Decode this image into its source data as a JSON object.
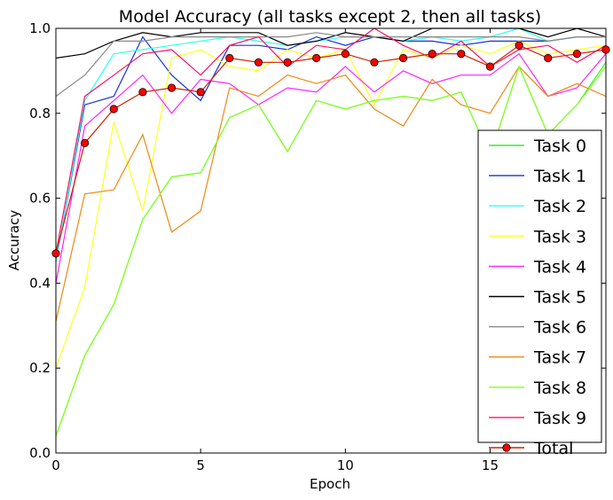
{
  "chart_data": {
    "type": "line",
    "title": "Model Accuracy (all tasks except 2, then all tasks)",
    "xlabel": "Epoch",
    "ylabel": "Accuracy",
    "xlim": [
      0,
      19
    ],
    "ylim": [
      0,
      1.0
    ],
    "xticks": [
      0,
      5,
      10,
      15
    ],
    "yticks": [
      0.0,
      0.2,
      0.4,
      0.6,
      0.8,
      1.0
    ],
    "xtick_labels": [
      "0",
      "5",
      "10",
      "15"
    ],
    "ytick_labels": [
      "0.0",
      "0.2",
      "0.4",
      "0.6",
      "0.8",
      "1.0"
    ],
    "grid": false,
    "legend_position": "right",
    "x": [
      0,
      1,
      2,
      3,
      4,
      5,
      6,
      7,
      8,
      9,
      10,
      11,
      12,
      13,
      14,
      15,
      16,
      17,
      18,
      19
    ],
    "series": [
      {
        "name": "Task 0",
        "color": "#33ee33",
        "marker": false,
        "values": [
          0.04,
          0.23,
          0.35,
          0.55,
          0.65,
          0.66,
          0.79,
          0.82,
          0.71,
          0.83,
          0.81,
          0.83,
          0.84,
          0.83,
          0.85,
          0.7,
          0.91,
          0.75,
          0.82,
          0.92
        ]
      },
      {
        "name": "Task 1",
        "color": "#1133dd",
        "marker": false,
        "values": [
          0.45,
          0.82,
          0.84,
          0.98,
          0.89,
          0.83,
          0.96,
          0.96,
          0.95,
          0.98,
          0.96,
          0.98,
          0.97,
          0.97,
          0.96,
          0.97,
          0.97,
          0.97,
          0.98,
          0.98
        ]
      },
      {
        "name": "Task 2",
        "color": "#33ffee",
        "marker": false,
        "values": [
          0.45,
          0.83,
          0.94,
          0.95,
          0.96,
          0.97,
          0.98,
          0.97,
          0.96,
          0.97,
          0.98,
          0.98,
          0.97,
          0.98,
          0.97,
          0.98,
          1.0,
          0.97,
          0.98,
          0.98
        ]
      },
      {
        "name": "Task 3",
        "color": "#ffff22",
        "marker": false,
        "values": [
          0.2,
          0.39,
          0.78,
          0.57,
          0.93,
          0.95,
          0.91,
          0.9,
          0.95,
          0.93,
          0.95,
          0.82,
          0.95,
          0.93,
          0.96,
          0.94,
          0.97,
          0.94,
          0.95,
          0.96
        ]
      },
      {
        "name": "Task 4",
        "color": "#ff22ff",
        "marker": false,
        "values": [
          0.4,
          0.77,
          0.83,
          0.89,
          0.8,
          0.88,
          0.87,
          0.82,
          0.86,
          0.85,
          0.91,
          0.85,
          0.9,
          0.87,
          0.89,
          0.89,
          0.94,
          0.84,
          0.86,
          0.94
        ]
      },
      {
        "name": "Task 5",
        "color": "#000000",
        "marker": false,
        "values": [
          0.93,
          0.94,
          0.97,
          0.99,
          0.98,
          0.99,
          0.99,
          0.99,
          0.96,
          0.97,
          0.99,
          0.98,
          0.97,
          1.0,
          1.0,
          1.0,
          1.0,
          0.98,
          1.0,
          0.98
        ]
      },
      {
        "name": "Task 6",
        "color": "#888888",
        "marker": false,
        "values": [
          0.84,
          0.89,
          0.97,
          0.97,
          0.98,
          0.98,
          0.98,
          0.98,
          0.98,
          0.99,
          0.98,
          0.98,
          0.98,
          0.98,
          0.98,
          0.98,
          0.98,
          0.97,
          0.98,
          0.98
        ]
      },
      {
        "name": "Task 7",
        "color": "#ee8811",
        "marker": false,
        "values": [
          0.31,
          0.61,
          0.62,
          0.75,
          0.52,
          0.57,
          0.86,
          0.84,
          0.89,
          0.87,
          0.89,
          0.81,
          0.77,
          0.88,
          0.82,
          0.8,
          0.91,
          0.84,
          0.87,
          0.84
        ]
      },
      {
        "name": "Task 8",
        "color": "#88ff22",
        "marker": false,
        "values": [
          0.04,
          0.23,
          0.35,
          0.55,
          0.65,
          0.66,
          0.79,
          0.82,
          0.71,
          0.83,
          0.81,
          0.83,
          0.84,
          0.83,
          0.85,
          0.7,
          0.91,
          0.75,
          0.82,
          0.91
        ]
      },
      {
        "name": "Task 9",
        "color": "#ff1166",
        "marker": false,
        "values": [
          0.47,
          0.84,
          0.89,
          0.94,
          0.95,
          0.89,
          0.96,
          0.98,
          0.91,
          0.96,
          0.95,
          1.0,
          0.96,
          0.93,
          0.97,
          0.91,
          0.95,
          0.96,
          0.92,
          0.96
        ]
      },
      {
        "name": "Total",
        "color": "#cc2200",
        "marker": true,
        "marker_color": "#ff0000",
        "values": [
          0.47,
          0.73,
          0.81,
          0.85,
          0.86,
          0.85,
          0.93,
          0.92,
          0.92,
          0.93,
          0.94,
          0.92,
          0.93,
          0.94,
          0.94,
          0.91,
          0.96,
          0.93,
          0.94,
          0.95
        ]
      }
    ]
  }
}
